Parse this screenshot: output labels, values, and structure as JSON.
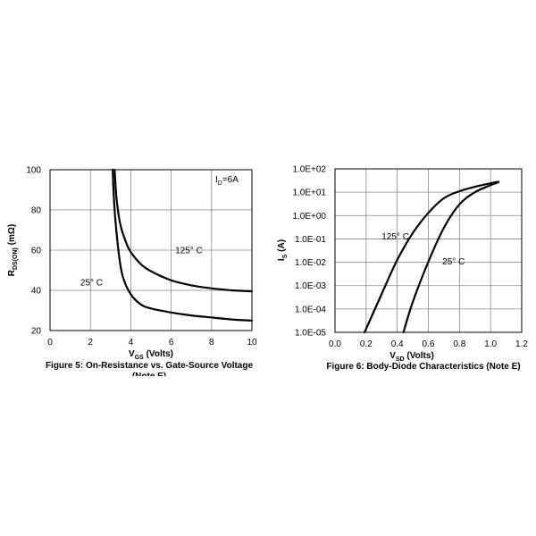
{
  "chart_data": [
    {
      "type": "line",
      "caption": "Figure 5: On-Resistance vs. Gate-Source Voltage",
      "caption_cut": "(Note E)",
      "xlabel_main": "V",
      "xlabel_sub": "GS",
      "xlabel_unit": " (Volts)",
      "ylabel_main": "R",
      "ylabel_sub": "DS(ON)",
      "ylabel_unit": " (mΩ)",
      "xlim": [
        0,
        10
      ],
      "ylim": [
        20,
        100
      ],
      "xticks": [
        0,
        2,
        4,
        6,
        8,
        10
      ],
      "xtick_labels": [
        "0",
        "2",
        "4",
        "6",
        "8",
        "10"
      ],
      "yticks": [
        20,
        40,
        60,
        80,
        100
      ],
      "ytick_labels": [
        "20",
        "40",
        "60",
        "80",
        "100"
      ],
      "grid": true,
      "condition_main": "I",
      "condition_sub": "D",
      "condition_value": "=6A",
      "series": [
        {
          "name": "125° C",
          "x": [
            3.2,
            3.3,
            3.5,
            3.8,
            4.0,
            4.5,
            5.0,
            6.0,
            7.0,
            8.0,
            9.0,
            10.0
          ],
          "y": [
            100,
            85,
            72,
            63,
            59,
            53,
            49.5,
            45,
            42.5,
            41,
            40,
            39.5
          ]
        },
        {
          "name": "25° C",
          "x": [
            3.1,
            3.2,
            3.4,
            3.6,
            4.0,
            4.5,
            5.0,
            6.0,
            7.0,
            8.0,
            9.0,
            10.0
          ],
          "y": [
            100,
            80,
            59,
            47,
            38,
            33,
            31,
            29,
            27.5,
            26.5,
            25.5,
            25
          ]
        }
      ],
      "annotations": [
        {
          "text": "125° C",
          "x": 6.2,
          "y": 60
        },
        {
          "text": "25° C",
          "x": 1.5,
          "y": 44
        }
      ]
    },
    {
      "type": "line",
      "caption": "Figure 6: Body-Diode Characteristics (Note E)",
      "xlabel_main": "V",
      "xlabel_sub": "SD",
      "xlabel_unit": " (Volts)",
      "ylabel_main": "I",
      "ylabel_sub": "S",
      "ylabel_unit": " (A)",
      "xlim": [
        0.0,
        1.2
      ],
      "ylim": [
        1e-05,
        100
      ],
      "yscale": "log",
      "xticks": [
        0.0,
        0.2,
        0.4,
        0.6,
        0.8,
        1.0,
        1.2
      ],
      "xtick_labels": [
        "0.0",
        "0.2",
        "0.4",
        "0.6",
        "0.8",
        "1.0",
        "1.2"
      ],
      "yticks": [
        1e-05,
        0.0001,
        0.001,
        0.01,
        0.1,
        1,
        10,
        100
      ],
      "ytick_labels": [
        "1.0E-05",
        "1.0E-04",
        "1.0E-03",
        "1.0E-02",
        "1.0E-01",
        "1.0E+00",
        "1.0E+01",
        "1.0E+02"
      ],
      "grid": true,
      "series": [
        {
          "name": "125° C",
          "x": [
            0.19,
            0.3,
            0.4,
            0.5,
            0.6,
            0.7,
            0.8,
            0.9,
            1.0,
            1.05
          ],
          "y": [
            1e-05,
            0.00044,
            0.0126,
            0.18,
            1.3,
            5.5,
            11,
            17,
            24,
            28
          ]
        },
        {
          "name": "25° C",
          "x": [
            0.44,
            0.5,
            0.6,
            0.7,
            0.8,
            0.9,
            1.0,
            1.05
          ],
          "y": [
            1e-05,
            0.0002,
            0.0105,
            0.3,
            3.0,
            10,
            20,
            27
          ]
        }
      ],
      "annotations": [
        {
          "text": "125° C",
          "x": 0.3,
          "y": 0.13
        },
        {
          "text": "25° C",
          "x": 0.69,
          "y": 0.011
        }
      ]
    }
  ]
}
